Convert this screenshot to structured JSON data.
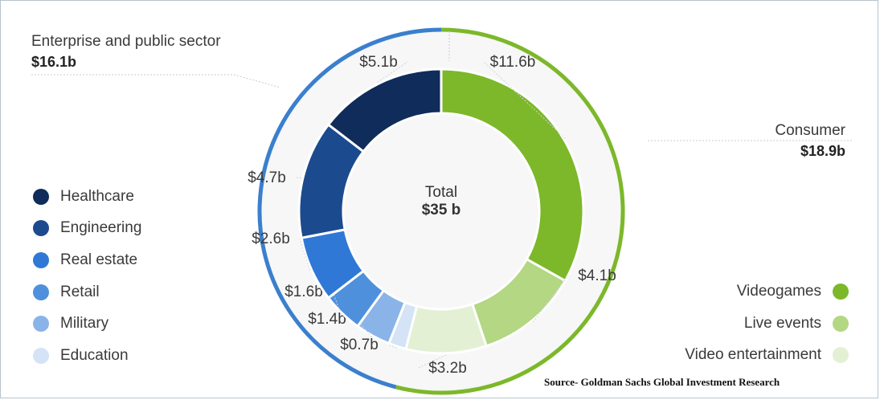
{
  "chart_data": {
    "type": "donut",
    "total_label": "Total",
    "total_value": "$35 b",
    "groups": [
      {
        "name": "Enterprise and public sector",
        "total": "$16.1b",
        "color": "#3b7fce"
      },
      {
        "name": "Consumer",
        "total": "$18.9b",
        "color": "#7cb82a"
      }
    ],
    "segments": [
      {
        "name": "Videogames",
        "value": 11.6,
        "label": "$11.6b",
        "color": "#7cb82a",
        "group": "Consumer"
      },
      {
        "name": "Live events",
        "value": 4.1,
        "label": "$4.1b",
        "color": "#b3d782",
        "group": "Consumer"
      },
      {
        "name": "Video entertainment",
        "value": 3.2,
        "label": "$3.2b",
        "color": "#e4f0d4",
        "group": "Consumer"
      },
      {
        "name": "Education",
        "value": 0.7,
        "label": "$0.7b",
        "color": "#d4e3f6",
        "group": "Enterprise and public sector"
      },
      {
        "name": "Military",
        "value": 1.4,
        "label": "$1.4b",
        "color": "#8ab4e8",
        "group": "Enterprise and public sector"
      },
      {
        "name": "Retail",
        "value": 1.6,
        "label": "$1.6b",
        "color": "#4f90dc",
        "group": "Enterprise and public sector"
      },
      {
        "name": "Real estate",
        "value": 2.6,
        "label": "$2.6b",
        "color": "#2f78d6",
        "group": "Enterprise and public sector"
      },
      {
        "name": "Engineering",
        "value": 4.7,
        "label": "$4.7b",
        "color": "#1c4a8e",
        "group": "Enterprise and public sector"
      },
      {
        "name": "Healthcare",
        "value": 5.1,
        "label": "$5.1b",
        "color": "#0f2c5a",
        "group": "Enterprise and public sector"
      }
    ],
    "legend_left": [
      "Healthcare",
      "Engineering",
      "Real estate",
      "Retail",
      "Military",
      "Education"
    ],
    "legend_right": [
      "Videogames",
      "Live events",
      "Video entertainment"
    ],
    "source": "Source- Goldman Sachs Global Investment Research"
  }
}
